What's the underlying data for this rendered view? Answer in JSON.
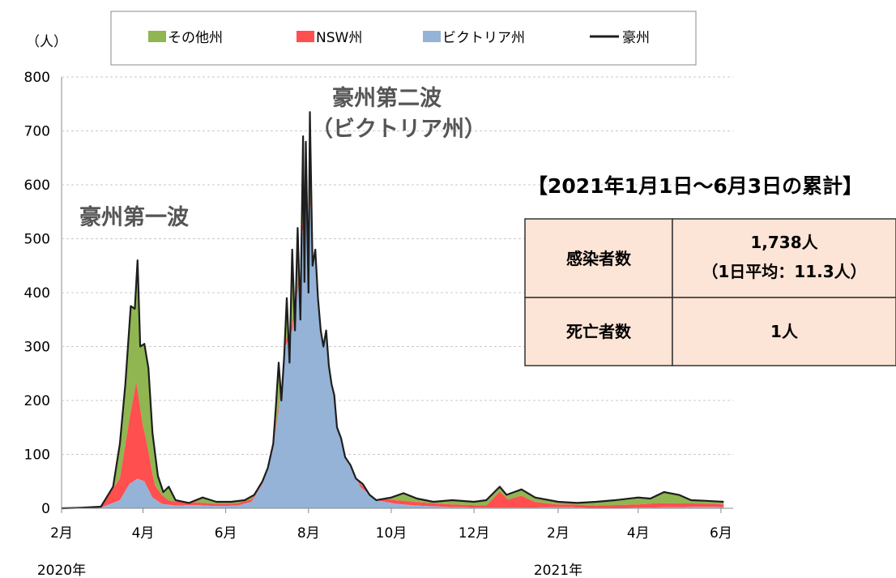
{
  "colors": {
    "other": "#8fb651",
    "nsw": "#ff4f4f",
    "vic": "#95b3d7",
    "total": "#1e1e1e",
    "table_fill": "#fce4d6"
  },
  "legend": {
    "other": "その他州",
    "nsw": "NSW州",
    "vic": "ビクトリア州",
    "total": "豪州"
  },
  "annotations": {
    "wave1": "豪州第一波",
    "wave2_line1": "豪州第二波",
    "wave2_line2": "（ビクトリア州）"
  },
  "summary": {
    "title": "【2021年1月1日～6月3日の累計】",
    "rows": [
      {
        "label": "感染者数",
        "value_line1": "1,738人",
        "value_line2": "（1日平均：11.3人）"
      },
      {
        "label": "死亡者数",
        "value_line1": "1人",
        "value_line2": ""
      }
    ]
  },
  "chart_data": {
    "type": "area",
    "stacked": true,
    "ylabel": "（人）",
    "ylim": [
      0,
      800
    ],
    "yticks": [
      0,
      100,
      200,
      300,
      400,
      500,
      600,
      700,
      800
    ],
    "xlim": [
      "2020-02-01",
      "2021-06-10"
    ],
    "xticks": [
      {
        "date": "2020-02-01",
        "label": "2月"
      },
      {
        "date": "2020-04-01",
        "label": "4月"
      },
      {
        "date": "2020-06-01",
        "label": "6月"
      },
      {
        "date": "2020-08-01",
        "label": "8月"
      },
      {
        "date": "2020-10-01",
        "label": "10月"
      },
      {
        "date": "2020-12-01",
        "label": "12月"
      },
      {
        "date": "2021-02-01",
        "label": "2月"
      },
      {
        "date": "2021-04-01",
        "label": "4月"
      },
      {
        "date": "2021-06-01",
        "label": "6月"
      }
    ],
    "year_labels": [
      {
        "date": "2020-02-01",
        "label": "2020年"
      },
      {
        "date": "2021-02-01",
        "label": "2021年"
      }
    ],
    "grid": "horizontal-dashed",
    "legend_position": "top",
    "series": [
      {
        "name": "ビクトリア州",
        "key": "vic",
        "points": [
          [
            "2020-02-01",
            0
          ],
          [
            "2020-03-01",
            1
          ],
          [
            "2020-03-15",
            15
          ],
          [
            "2020-03-22",
            45
          ],
          [
            "2020-03-28",
            55
          ],
          [
            "2020-04-02",
            50
          ],
          [
            "2020-04-08",
            20
          ],
          [
            "2020-04-15",
            8
          ],
          [
            "2020-04-25",
            5
          ],
          [
            "2020-05-10",
            6
          ],
          [
            "2020-05-25",
            4
          ],
          [
            "2020-06-10",
            5
          ],
          [
            "2020-06-20",
            12
          ],
          [
            "2020-06-28",
            45
          ],
          [
            "2020-07-05",
            100
          ],
          [
            "2020-07-10",
            180
          ],
          [
            "2020-07-15",
            300
          ],
          [
            "2020-07-20",
            330
          ],
          [
            "2020-07-25",
            420
          ],
          [
            "2020-07-31",
            620
          ],
          [
            "2020-08-04",
            520
          ],
          [
            "2020-08-08",
            420
          ],
          [
            "2020-08-12",
            380
          ],
          [
            "2020-08-16",
            340
          ],
          [
            "2020-08-20",
            270
          ],
          [
            "2020-08-25",
            170
          ],
          [
            "2020-08-31",
            90
          ],
          [
            "2020-09-08",
            40
          ],
          [
            "2020-09-20",
            15
          ],
          [
            "2020-10-05",
            8
          ],
          [
            "2020-10-20",
            5
          ],
          [
            "2020-11-15",
            2
          ],
          [
            "2020-12-15",
            1
          ],
          [
            "2021-02-10",
            2
          ],
          [
            "2021-03-01",
            0
          ],
          [
            "2021-05-25",
            3
          ],
          [
            "2021-06-03",
            2
          ]
        ]
      },
      {
        "name": "NSW州",
        "key": "nsw",
        "points": [
          [
            "2020-02-01",
            0
          ],
          [
            "2020-03-01",
            2
          ],
          [
            "2020-03-15",
            40
          ],
          [
            "2020-03-22",
            120
          ],
          [
            "2020-03-27",
            180
          ],
          [
            "2020-04-01",
            100
          ],
          [
            "2020-04-05",
            70
          ],
          [
            "2020-04-10",
            25
          ],
          [
            "2020-04-20",
            8
          ],
          [
            "2020-05-10",
            5
          ],
          [
            "2020-06-01",
            4
          ],
          [
            "2020-07-01",
            5
          ],
          [
            "2020-07-20",
            12
          ],
          [
            "2020-08-01",
            15
          ],
          [
            "2020-08-20",
            8
          ],
          [
            "2020-09-10",
            5
          ],
          [
            "2020-10-10",
            7
          ],
          [
            "2020-11-15",
            5
          ],
          [
            "2020-12-10",
            4
          ],
          [
            "2020-12-20",
            30
          ],
          [
            "2020-12-26",
            15
          ],
          [
            "2021-01-05",
            22
          ],
          [
            "2021-01-15",
            10
          ],
          [
            "2021-02-01",
            5
          ],
          [
            "2021-03-01",
            5
          ],
          [
            "2021-04-01",
            6
          ],
          [
            "2021-04-15",
            8
          ],
          [
            "2021-05-01",
            7
          ],
          [
            "2021-05-20",
            6
          ],
          [
            "2021-06-03",
            5
          ]
        ]
      },
      {
        "name": "その他州",
        "key": "other",
        "points": [
          [
            "2020-02-01",
            0
          ],
          [
            "2020-03-01",
            1
          ],
          [
            "2020-03-15",
            60
          ],
          [
            "2020-03-22",
            100
          ],
          [
            "2020-03-27",
            130
          ],
          [
            "2020-04-01",
            100
          ],
          [
            "2020-04-05",
            90
          ],
          [
            "2020-04-10",
            40
          ],
          [
            "2020-04-20",
            10
          ],
          [
            "2020-05-10",
            4
          ],
          [
            "2020-06-01",
            3
          ],
          [
            "2020-07-01",
            5
          ],
          [
            "2020-08-01",
            5
          ],
          [
            "2020-09-01",
            4
          ],
          [
            "2020-10-01",
            4
          ],
          [
            "2020-11-15",
            5
          ],
          [
            "2020-12-15",
            4
          ],
          [
            "2021-01-15",
            5
          ],
          [
            "2021-02-15",
            5
          ],
          [
            "2021-03-15",
            6
          ],
          [
            "2021-04-01",
            8
          ],
          [
            "2021-04-15",
            10
          ],
          [
            "2021-05-01",
            12
          ],
          [
            "2021-05-20",
            9
          ],
          [
            "2021-06-03",
            7
          ]
        ]
      },
      {
        "name": "豪州",
        "key": "total",
        "points": [
          [
            "2020-02-01",
            0
          ],
          [
            "2020-02-15",
            1
          ],
          [
            "2020-03-01",
            3
          ],
          [
            "2020-03-10",
            40
          ],
          [
            "2020-03-15",
            120
          ],
          [
            "2020-03-19",
            230
          ],
          [
            "2020-03-23",
            375
          ],
          [
            "2020-03-26",
            370
          ],
          [
            "2020-03-28",
            460
          ],
          [
            "2020-03-30",
            300
          ],
          [
            "2020-04-02",
            305
          ],
          [
            "2020-04-05",
            260
          ],
          [
            "2020-04-08",
            140
          ],
          [
            "2020-04-12",
            60
          ],
          [
            "2020-04-16",
            30
          ],
          [
            "2020-04-20",
            40
          ],
          [
            "2020-04-25",
            15
          ],
          [
            "2020-05-05",
            10
          ],
          [
            "2020-05-15",
            20
          ],
          [
            "2020-05-25",
            12
          ],
          [
            "2020-06-05",
            12
          ],
          [
            "2020-06-15",
            15
          ],
          [
            "2020-06-22",
            25
          ],
          [
            "2020-06-28",
            50
          ],
          [
            "2020-07-02",
            75
          ],
          [
            "2020-07-06",
            120
          ],
          [
            "2020-07-08",
            190
          ],
          [
            "2020-07-10",
            270
          ],
          [
            "2020-07-12",
            200
          ],
          [
            "2020-07-14",
            280
          ],
          [
            "2020-07-16",
            390
          ],
          [
            "2020-07-18",
            270
          ],
          [
            "2020-07-20",
            480
          ],
          [
            "2020-07-22",
            330
          ],
          [
            "2020-07-24",
            520
          ],
          [
            "2020-07-26",
            350
          ],
          [
            "2020-07-28",
            690
          ],
          [
            "2020-07-29",
            420
          ],
          [
            "2020-07-30",
            680
          ],
          [
            "2020-08-01",
            400
          ],
          [
            "2020-08-02",
            735
          ],
          [
            "2020-08-04",
            450
          ],
          [
            "2020-08-06",
            480
          ],
          [
            "2020-08-08",
            390
          ],
          [
            "2020-08-10",
            330
          ],
          [
            "2020-08-12",
            300
          ],
          [
            "2020-08-14",
            330
          ],
          [
            "2020-08-16",
            265
          ],
          [
            "2020-08-18",
            230
          ],
          [
            "2020-08-20",
            210
          ],
          [
            "2020-08-22",
            150
          ],
          [
            "2020-08-25",
            130
          ],
          [
            "2020-08-28",
            95
          ],
          [
            "2020-09-01",
            80
          ],
          [
            "2020-09-05",
            55
          ],
          [
            "2020-09-10",
            45
          ],
          [
            "2020-09-15",
            25
          ],
          [
            "2020-09-20",
            15
          ],
          [
            "2020-10-01",
            20
          ],
          [
            "2020-10-10",
            28
          ],
          [
            "2020-10-20",
            18
          ],
          [
            "2020-11-01",
            12
          ],
          [
            "2020-11-15",
            15
          ],
          [
            "2020-12-01",
            12
          ],
          [
            "2020-12-10",
            15
          ],
          [
            "2020-12-20",
            40
          ],
          [
            "2020-12-25",
            25
          ],
          [
            "2021-01-05",
            35
          ],
          [
            "2021-01-15",
            20
          ],
          [
            "2021-02-01",
            12
          ],
          [
            "2021-02-15",
            10
          ],
          [
            "2021-03-01",
            12
          ],
          [
            "2021-03-15",
            15
          ],
          [
            "2021-04-01",
            20
          ],
          [
            "2021-04-10",
            18
          ],
          [
            "2021-04-20",
            30
          ],
          [
            "2021-05-01",
            25
          ],
          [
            "2021-05-10",
            15
          ],
          [
            "2021-05-20",
            14
          ],
          [
            "2021-06-03",
            12
          ]
        ]
      }
    ]
  }
}
